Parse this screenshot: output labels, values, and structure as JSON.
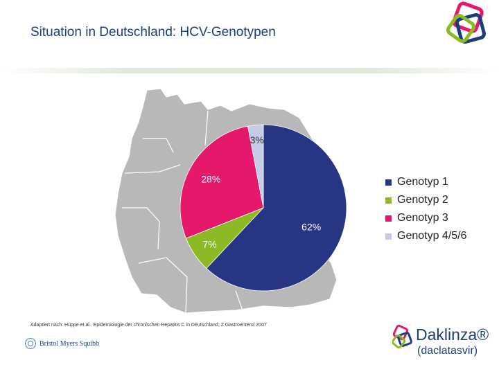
{
  "title": "Situation in Deutschland: HCV-Genotypen",
  "chart_data": {
    "type": "pie",
    "categories": [
      "Genotyp 1",
      "Genotyp 2",
      "Genotyp 3",
      "Genotyp 4/5/6"
    ],
    "values": [
      62,
      7,
      28,
      3
    ],
    "labels": [
      "62%",
      "7%",
      "28%",
      "3%"
    ],
    "colors": [
      "#283583",
      "#8dba24",
      "#e5186c",
      "#c6cbe8"
    ],
    "legend_position": "right"
  },
  "legend": [
    {
      "label": "Genotyp 1",
      "color": "#283583"
    },
    {
      "label": "Genotyp 2",
      "color": "#8dba24"
    },
    {
      "label": "Genotyp 3",
      "color": "#e5186c"
    },
    {
      "label": "Genotyp 4/5/6",
      "color": "#c6cbe8"
    }
  ],
  "source": "Adaptiert nach: Hüppe et al.. Epidemiologie der chronischen Hepatitis C in Deutschland; Z Gastroenterol 2007",
  "logos": {
    "company": "Bristol Myers Squibb",
    "product": "Daklinza®",
    "product_sub": "(daclatasvir)"
  },
  "map_color": "#b8b8b8"
}
